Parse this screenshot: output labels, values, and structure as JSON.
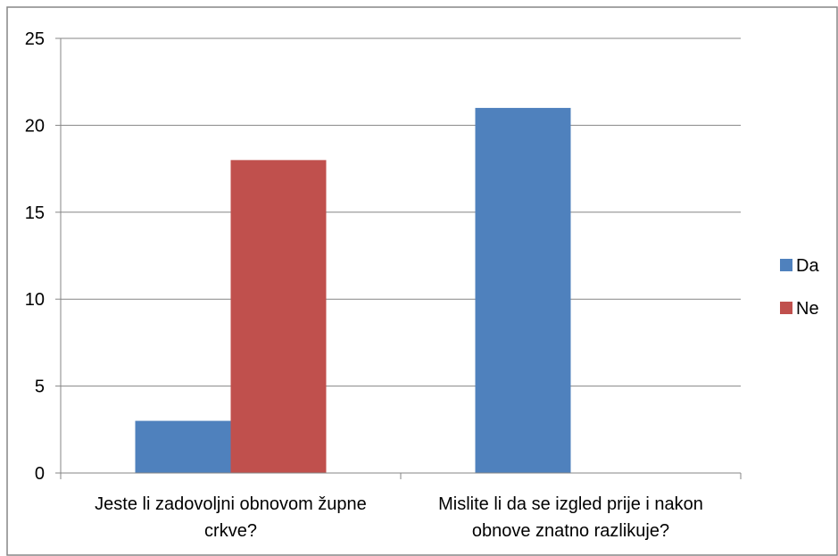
{
  "chart_data": {
    "type": "bar",
    "categories": [
      [
        "Jeste li zadovoljni obnovom župne",
        "crkve?"
      ],
      [
        "Mislite li da se izgled prije i nakon",
        "obnove znatno razlikuje?"
      ]
    ],
    "series": [
      {
        "name": "Da",
        "values": [
          3,
          21
        ],
        "color": "#4f81bd"
      },
      {
        "name": "Ne",
        "values": [
          18,
          0
        ],
        "color": "#c0504d"
      }
    ],
    "y_ticks": [
      "0",
      "5",
      "10",
      "15",
      "20",
      "25"
    ],
    "ylim": [
      0,
      25
    ],
    "grid": true,
    "legend_position": "right"
  }
}
